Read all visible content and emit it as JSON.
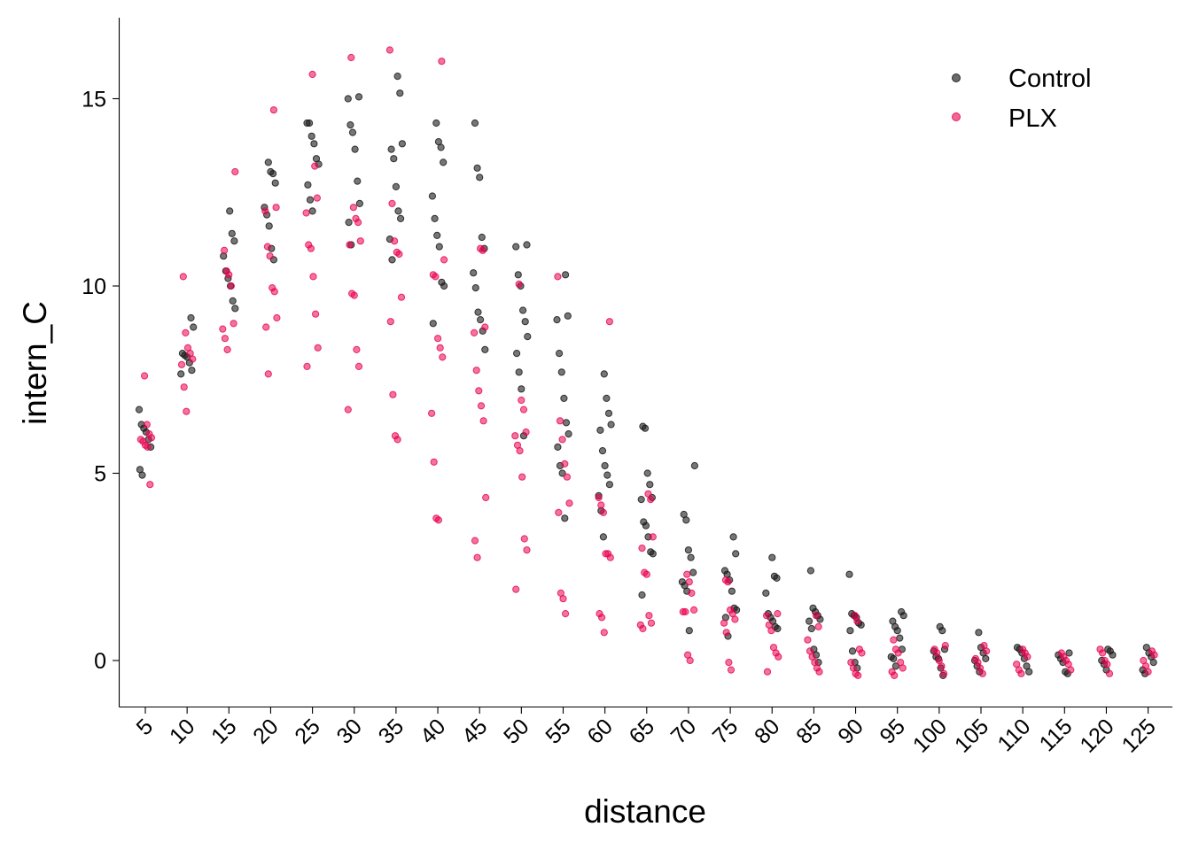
{
  "chart_data": {
    "type": "scatter",
    "title": "",
    "xlabel": "distance",
    "ylabel": "intern_C",
    "x_is_categorical": true,
    "categories": [
      "5",
      "10",
      "15",
      "20",
      "25",
      "30",
      "35",
      "40",
      "45",
      "50",
      "55",
      "60",
      "65",
      "70",
      "75",
      "80",
      "85",
      "90",
      "95",
      "100",
      "105",
      "110",
      "115",
      "120",
      "125"
    ],
    "yticks": [
      0,
      5,
      10,
      15
    ],
    "ylim": [
      -1.25,
      17.1
    ],
    "grid": false,
    "legend": {
      "position": "top-right"
    },
    "series": [
      {
        "name": "Control",
        "color": "#1a1a1a",
        "values": [
          [
            6.7,
            6.3,
            6.2,
            6.1,
            5.9,
            5.7,
            5.1,
            4.95
          ],
          [
            9.15,
            8.9,
            8.2,
            8.15,
            8.1,
            7.95,
            7.75,
            7.65
          ],
          [
            12.0,
            11.4,
            11.2,
            10.8,
            10.4,
            10.2,
            10.0,
            9.6,
            9.4
          ],
          [
            13.3,
            13.05,
            13.0,
            12.75,
            12.1,
            11.9,
            11.6,
            11.0,
            10.7
          ],
          [
            14.35,
            14.35,
            14.0,
            13.8,
            13.4,
            13.25,
            12.7,
            12.3,
            12.0
          ],
          [
            15.05,
            15.0,
            14.3,
            14.1,
            13.65,
            12.8,
            12.2,
            11.7,
            11.1
          ],
          [
            15.6,
            15.15,
            13.8,
            13.65,
            13.4,
            12.65,
            12.0,
            11.8,
            11.25,
            10.7
          ],
          [
            14.35,
            13.85,
            13.7,
            13.3,
            12.4,
            11.8,
            11.35,
            11.05,
            10.1,
            10.0,
            9.0
          ],
          [
            14.35,
            13.15,
            12.9,
            11.3,
            11.0,
            10.35,
            9.95,
            9.3,
            9.1,
            8.8,
            8.3
          ],
          [
            11.1,
            11.05,
            10.3,
            10.0,
            9.35,
            9.05,
            8.65,
            8.2,
            7.7,
            7.25,
            6.0
          ],
          [
            10.3,
            9.2,
            9.1,
            8.2,
            7.7,
            7.0,
            6.35,
            6.05,
            5.7,
            5.2,
            5.0,
            3.8
          ],
          [
            7.65,
            7.0,
            6.6,
            6.3,
            6.15,
            5.6,
            5.2,
            4.95,
            4.7,
            4.4,
            4.0,
            3.3
          ],
          [
            6.25,
            6.2,
            5.0,
            4.7,
            4.35,
            4.3,
            3.7,
            3.6,
            3.3,
            2.9,
            2.85,
            1.75
          ],
          [
            5.2,
            3.9,
            3.75,
            2.95,
            2.75,
            2.35,
            2.1,
            2.0,
            1.85,
            0.8
          ],
          [
            3.3,
            2.85,
            2.4,
            2.3,
            2.15,
            1.85,
            1.4,
            1.35,
            1.15,
            0.65
          ],
          [
            2.75,
            2.25,
            2.2,
            1.8,
            1.25,
            1.15,
            1.05,
            0.9,
            0.85
          ],
          [
            2.4,
            1.4,
            1.3,
            1.2,
            1.1,
            1.05,
            0.85,
            0.3,
            0.15,
            -0.05
          ],
          [
            2.3,
            1.25,
            1.2,
            1.15,
            1.0,
            0.95,
            0.8,
            0.25,
            -0.05,
            -0.2
          ],
          [
            1.3,
            1.2,
            1.05,
            0.9,
            0.8,
            0.6,
            0.3,
            0.1,
            0.05,
            -0.15
          ],
          [
            0.9,
            0.8,
            0.3,
            0.25,
            0.1,
            0.05,
            -0.2,
            -0.4
          ],
          [
            0.75,
            0.35,
            0.2,
            0.05,
            0.0,
            -0.15,
            -0.3
          ],
          [
            0.35,
            0.3,
            0.2,
            0.05,
            -0.15,
            -0.3
          ],
          [
            0.2,
            0.15,
            0.05,
            -0.05,
            -0.3,
            -0.35
          ],
          [
            0.3,
            0.25,
            0.15,
            0.0,
            -0.1,
            -0.25
          ],
          [
            0.35,
            0.2,
            0.1,
            -0.05,
            -0.25,
            -0.35
          ]
        ]
      },
      {
        "name": "PLX",
        "color": "#e8004f",
        "values": [
          [
            7.6,
            6.3,
            6.05,
            5.95,
            5.9,
            5.85,
            5.75,
            5.7,
            4.7
          ],
          [
            10.25,
            8.75,
            8.35,
            8.2,
            8.05,
            7.9,
            7.3,
            6.65
          ],
          [
            13.05,
            10.95,
            10.4,
            10.3,
            10.0,
            9.0,
            8.85,
            8.6,
            8.3
          ],
          [
            14.7,
            12.1,
            12.0,
            11.05,
            10.8,
            9.95,
            9.85,
            9.15,
            8.9,
            7.65
          ],
          [
            15.65,
            13.2,
            12.35,
            11.95,
            11.1,
            11.0,
            10.25,
            9.25,
            8.35,
            7.85
          ],
          [
            16.1,
            12.1,
            11.8,
            11.7,
            11.2,
            11.1,
            9.8,
            9.75,
            8.3,
            7.85,
            6.7
          ],
          [
            16.3,
            12.2,
            11.2,
            10.9,
            10.85,
            9.7,
            9.05,
            7.1,
            6.0,
            5.9
          ],
          [
            16.0,
            10.7,
            10.3,
            10.25,
            8.6,
            8.35,
            8.1,
            6.6,
            5.3,
            3.8,
            3.75
          ],
          [
            11.0,
            10.95,
            8.9,
            8.75,
            7.75,
            7.2,
            6.8,
            6.4,
            4.35,
            3.2,
            2.75
          ],
          [
            10.05,
            6.95,
            6.7,
            6.1,
            6.0,
            5.75,
            5.6,
            4.9,
            3.25,
            2.95,
            1.9
          ],
          [
            10.25,
            6.4,
            5.9,
            5.25,
            4.9,
            4.2,
            3.95,
            1.8,
            1.65,
            1.25
          ],
          [
            9.05,
            4.35,
            4.15,
            3.95,
            2.85,
            2.85,
            2.75,
            1.25,
            1.15,
            0.75
          ],
          [
            4.45,
            4.3,
            3.3,
            3.0,
            2.35,
            2.3,
            1.2,
            1.0,
            0.95,
            0.85
          ],
          [
            2.3,
            2.1,
            1.8,
            1.35,
            1.3,
            1.3,
            0.15,
            0.0
          ],
          [
            2.15,
            2.1,
            1.35,
            1.25,
            1.1,
            1.0,
            0.75,
            -0.05,
            -0.25
          ],
          [
            1.25,
            1.2,
            0.95,
            0.8,
            0.35,
            0.2,
            0.1,
            -0.3
          ],
          [
            1.2,
            0.9,
            0.55,
            0.25,
            0.1,
            -0.05,
            -0.2,
            -0.3
          ],
          [
            1.2,
            1.05,
            0.3,
            0.2,
            -0.05,
            -0.2,
            -0.35,
            -0.4
          ],
          [
            0.55,
            0.3,
            0.2,
            -0.05,
            -0.2,
            -0.3,
            -0.4
          ],
          [
            0.4,
            0.3,
            0.2,
            0.0,
            -0.15,
            -0.35
          ],
          [
            0.4,
            0.25,
            0.05,
            -0.05,
            -0.2,
            -0.35
          ],
          [
            0.3,
            0.2,
            0.1,
            -0.1,
            -0.25,
            -0.35
          ],
          [
            0.2,
            0.1,
            0.0,
            -0.1,
            -0.25
          ],
          [
            0.3,
            0.2,
            0.0,
            -0.1,
            -0.35
          ],
          [
            0.25,
            0.15,
            0.0,
            -0.15,
            -0.3
          ]
        ]
      }
    ]
  }
}
